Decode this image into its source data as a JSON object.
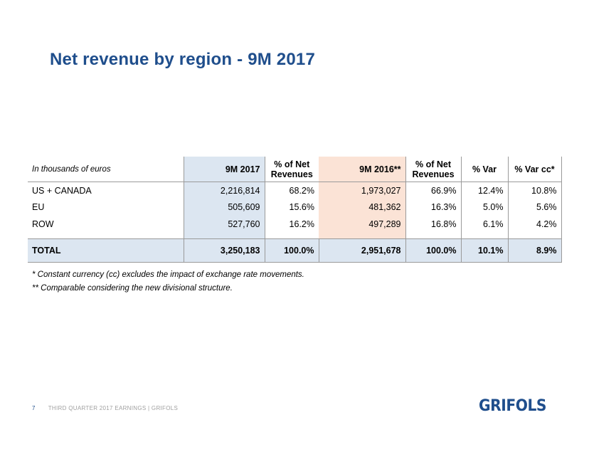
{
  "title": "Net revenue by region - 9M 2017",
  "table": {
    "unit_label": "In thousands of euros",
    "headers": {
      "c1": "9M 2017",
      "c2_line1": "% of Net",
      "c2_line2": "Revenues",
      "c3": "9M 2016**",
      "c4_line1": "% of Net",
      "c4_line2": "Revenues",
      "c5": "% Var",
      "c6": "% Var cc*"
    },
    "rows": [
      {
        "region": "US + CANADA",
        "v2017": "2,216,814",
        "p2017": "68.2%",
        "v2016": "1,973,027",
        "p2016": "66.9%",
        "var": "12.4%",
        "varcc": "10.8%"
      },
      {
        "region": "EU",
        "v2017": "505,609",
        "p2017": "15.6%",
        "v2016": "481,362",
        "p2016": "16.3%",
        "var": "5.0%",
        "varcc": "5.6%"
      },
      {
        "region": "ROW",
        "v2017": "527,760",
        "p2017": "16.2%",
        "v2016": "497,289",
        "p2016": "16.8%",
        "var": "6.1%",
        "varcc": "4.2%"
      }
    ],
    "total": {
      "region": "TOTAL",
      "v2017": "3,250,183",
      "p2017": "100.0%",
      "v2016": "2,951,678",
      "p2016": "100.0%",
      "var": "10.1%",
      "varcc": "8.9%"
    }
  },
  "notes": [
    "* Constant currency (cc) excludes the impact of exchange rate movements.",
    "** Comparable considering the new divisional structure."
  ],
  "footer": {
    "page_number": "7",
    "text": "THIRD QUARTER 2017 EARNINGS  | GRIFOLS"
  },
  "logo": "GRIFOLS"
}
